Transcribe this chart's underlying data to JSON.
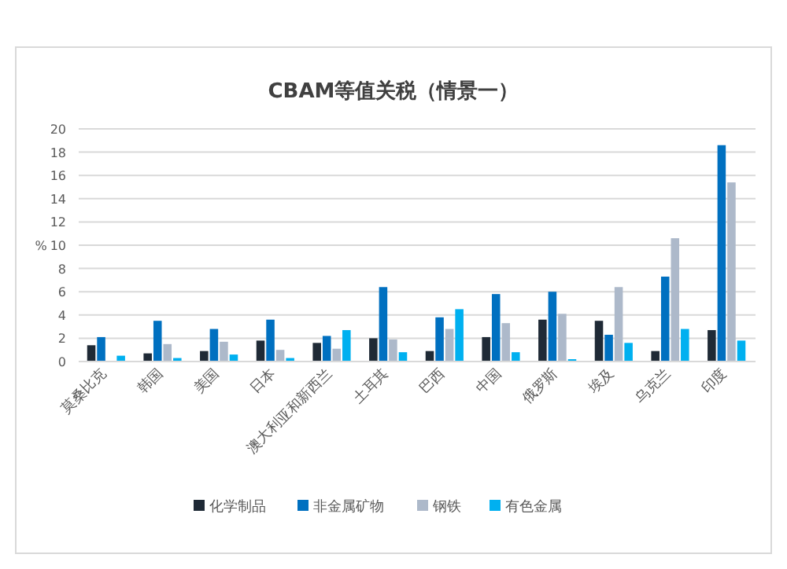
{
  "chart_data": {
    "type": "bar",
    "title": "CBAM等值关税（情景一）",
    "ylabel": "%",
    "categories": [
      "莫桑比克",
      "韩国",
      "美国",
      "日本",
      "澳大利亚和新西兰",
      "土耳其",
      "巴西",
      "中国",
      "俄罗斯",
      "埃及",
      "乌克兰",
      "印度"
    ],
    "series": [
      {
        "name": "化学制品",
        "color": "#1f2a36",
        "values": [
          1.4,
          0.7,
          0.9,
          1.8,
          1.6,
          2.0,
          0.9,
          2.1,
          3.6,
          3.5,
          0.9,
          2.7
        ]
      },
      {
        "name": "非金属矿物",
        "color": "#0070c0",
        "values": [
          2.1,
          3.5,
          2.8,
          3.6,
          2.2,
          6.4,
          3.8,
          5.8,
          6.0,
          2.3,
          7.3,
          18.6
        ]
      },
      {
        "name": "钢铁",
        "color": "#adb9ca",
        "values": [
          0,
          1.5,
          1.7,
          1.0,
          1.1,
          1.9,
          2.8,
          3.3,
          4.1,
          6.4,
          10.6,
          15.4
        ]
      },
      {
        "name": "有色金属",
        "color": "#00b0f0",
        "values": [
          0.5,
          0.3,
          0.6,
          0.3,
          2.7,
          0.8,
          4.5,
          0.8,
          0.2,
          1.6,
          2.8,
          1.8
        ]
      }
    ],
    "ylim": [
      0,
      20
    ],
    "yticks": [
      0,
      2,
      4,
      6,
      8,
      10,
      12,
      14,
      16,
      18,
      20
    ],
    "grid": "y",
    "legend": "bottom"
  }
}
